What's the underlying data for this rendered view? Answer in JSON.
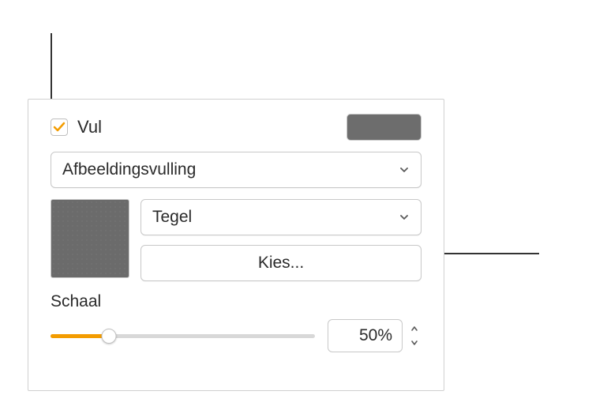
{
  "fill": {
    "checkbox_checked": true,
    "label": "Vul",
    "swatch_color": "#6d6d6d",
    "accent_color": "#f39c00"
  },
  "fill_type": {
    "selected": "Afbeeldingsvulling"
  },
  "image": {
    "preview_color": "#6b6b6b",
    "scale_mode": "Tegel",
    "choose_button": "Kies..."
  },
  "scale": {
    "label": "Schaal",
    "value_display": "50%",
    "percent": 22
  },
  "colors": {
    "border": "#c8c8c8",
    "text": "#2a2a2a",
    "track": "#d8d8d8",
    "callout": "#333333"
  }
}
